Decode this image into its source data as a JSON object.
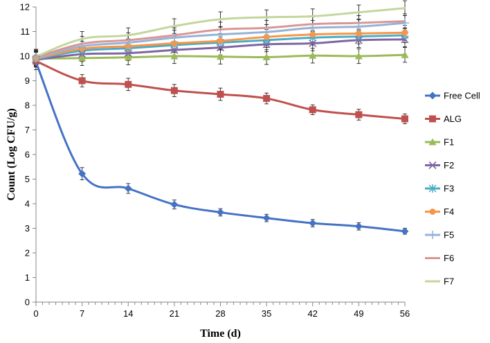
{
  "chart_data": {
    "type": "line",
    "title": "",
    "xlabel": "Time (d)",
    "ylabel": "Count (Log CFU/g)",
    "x": [
      0,
      7,
      14,
      21,
      28,
      35,
      42,
      49,
      56
    ],
    "x_ticks": [
      "0",
      "7",
      "14",
      "21",
      "28",
      "35",
      "42",
      "49",
      "56"
    ],
    "y_ticks": [
      "0",
      "1",
      "2",
      "3",
      "4",
      "5",
      "6",
      "7",
      "8",
      "9",
      "10",
      "11",
      "12"
    ],
    "xlim": [
      0,
      56
    ],
    "ylim": [
      0,
      12
    ],
    "grid": false,
    "legend_position": "right",
    "series": [
      {
        "name": "Free Cell",
        "color": "#4472C4",
        "marker": "diamond",
        "smooth": true,
        "values": [
          9.75,
          5.22,
          4.62,
          3.97,
          3.65,
          3.42,
          3.21,
          3.08,
          2.88
        ],
        "errors": [
          0.3,
          0.25,
          0.2,
          0.18,
          0.15,
          0.15,
          0.15,
          0.15,
          0.12
        ]
      },
      {
        "name": "ALG",
        "color": "#C0504D",
        "marker": "square",
        "smooth": false,
        "values": [
          9.8,
          9.0,
          8.85,
          8.6,
          8.45,
          8.28,
          7.82,
          7.62,
          7.45
        ],
        "errors": [
          0.2,
          0.25,
          0.25,
          0.25,
          0.25,
          0.22,
          0.2,
          0.22,
          0.2
        ]
      },
      {
        "name": "F1",
        "color": "#9BBB59",
        "marker": "triangle",
        "smooth": false,
        "values": [
          9.9,
          9.92,
          9.95,
          10.0,
          9.98,
          9.96,
          10.02,
          10.0,
          10.05
        ],
        "errors": [
          0.3,
          0.3,
          0.3,
          0.3,
          0.3,
          0.3,
          0.3,
          0.3,
          0.3
        ]
      },
      {
        "name": "F2",
        "color": "#8064A2",
        "marker": "x",
        "smooth": false,
        "values": [
          9.85,
          10.08,
          10.12,
          10.25,
          10.35,
          10.48,
          10.52,
          10.65,
          10.68
        ],
        "errors": [
          0.3,
          0.3,
          0.3,
          0.3,
          0.3,
          0.3,
          0.3,
          0.3,
          0.3
        ]
      },
      {
        "name": "F3",
        "color": "#4BACC6",
        "marker": "star",
        "smooth": false,
        "values": [
          9.88,
          10.22,
          10.32,
          10.45,
          10.55,
          10.65,
          10.75,
          10.8,
          10.85
        ],
        "errors": [
          0.3,
          0.3,
          0.3,
          0.3,
          0.3,
          0.3,
          0.3,
          0.3,
          0.3
        ]
      },
      {
        "name": "F4",
        "color": "#F79646",
        "marker": "circle",
        "smooth": false,
        "values": [
          9.9,
          10.3,
          10.4,
          10.52,
          10.62,
          10.78,
          10.88,
          10.92,
          10.95
        ],
        "errors": [
          0.3,
          0.3,
          0.3,
          0.3,
          0.3,
          0.3,
          0.3,
          0.3,
          0.3
        ]
      },
      {
        "name": "F5",
        "color": "#95B3D7",
        "marker": "plus",
        "smooth": false,
        "values": [
          9.92,
          10.4,
          10.55,
          10.75,
          10.88,
          10.98,
          11.15,
          11.2,
          11.35
        ],
        "errors": [
          0.3,
          0.3,
          0.3,
          0.3,
          0.3,
          0.3,
          0.3,
          0.3,
          0.3
        ]
      },
      {
        "name": "F6",
        "color": "#D99694",
        "marker": "none",
        "smooth": false,
        "values": [
          9.95,
          10.5,
          10.65,
          10.85,
          11.08,
          11.15,
          11.3,
          11.35,
          11.42
        ],
        "errors": [
          0.3,
          0.3,
          0.3,
          0.3,
          0.3,
          0.3,
          0.3,
          0.3,
          0.3
        ]
      },
      {
        "name": "F7",
        "color": "#C3D69B",
        "marker": "none",
        "smooth": false,
        "values": [
          9.98,
          10.7,
          10.85,
          11.22,
          11.5,
          11.58,
          11.62,
          11.78,
          11.95
        ],
        "errors": [
          0.3,
          0.3,
          0.3,
          0.3,
          0.3,
          0.3,
          0.3,
          0.3,
          0.3
        ]
      }
    ]
  }
}
